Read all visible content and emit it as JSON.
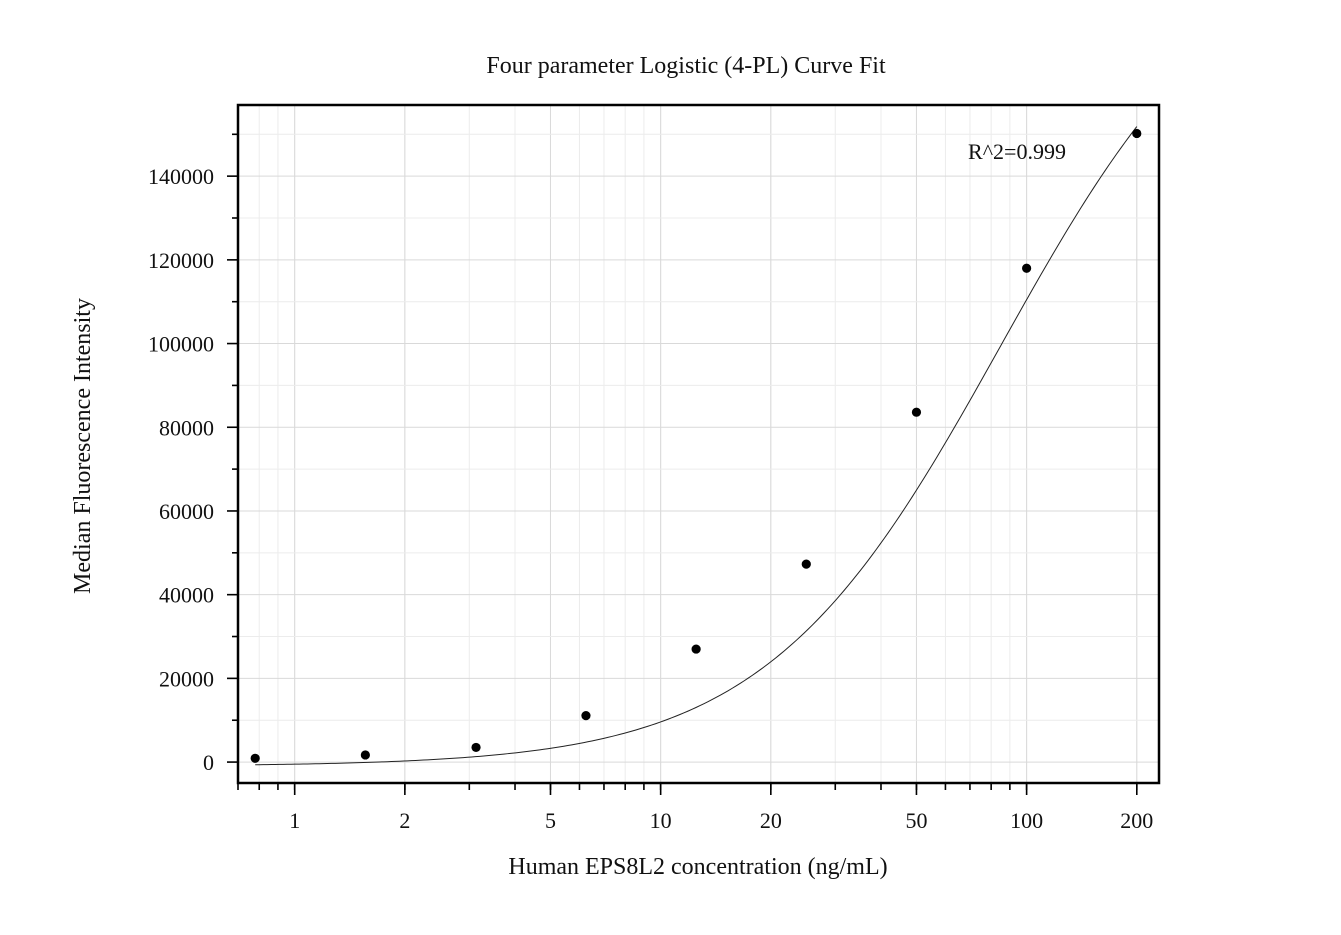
{
  "chart_data": {
    "type": "scatter",
    "title": "Four parameter Logistic (4-PL) Curve Fit",
    "xlabel": "Human EPS8L2 concentration (ng/mL)",
    "ylabel": "Median Fluorescence Intensity",
    "x_scale": "log",
    "xlim": [
      0.7,
      230
    ],
    "ylim": [
      -5000,
      157000
    ],
    "x_ticks": [
      1,
      2,
      5,
      10,
      20,
      50,
      100,
      200
    ],
    "x_tick_labels": [
      "1",
      "2",
      "5",
      "10",
      "20",
      "50",
      "100",
      "200"
    ],
    "y_ticks": [
      0,
      20000,
      40000,
      60000,
      80000,
      100000,
      120000,
      140000
    ],
    "y_tick_labels": [
      "0",
      "20000",
      "40000",
      "60000",
      "80000",
      "100000",
      "120000",
      "140000"
    ],
    "grid": true,
    "annotation": "R^2=0.999",
    "series": [
      {
        "x": [
          0.78,
          1.56,
          3.13,
          6.25,
          12.5,
          25,
          50,
          100,
          200
        ],
        "y": [
          900,
          1700,
          3500,
          11100,
          27000,
          47300,
          83600,
          118000,
          150200
        ]
      }
    ],
    "fit": {
      "model": "4PL",
      "A": -1000,
      "D": 200000,
      "C": 85,
      "B": 1.35,
      "x_range": [
        0.78,
        200
      ]
    }
  }
}
